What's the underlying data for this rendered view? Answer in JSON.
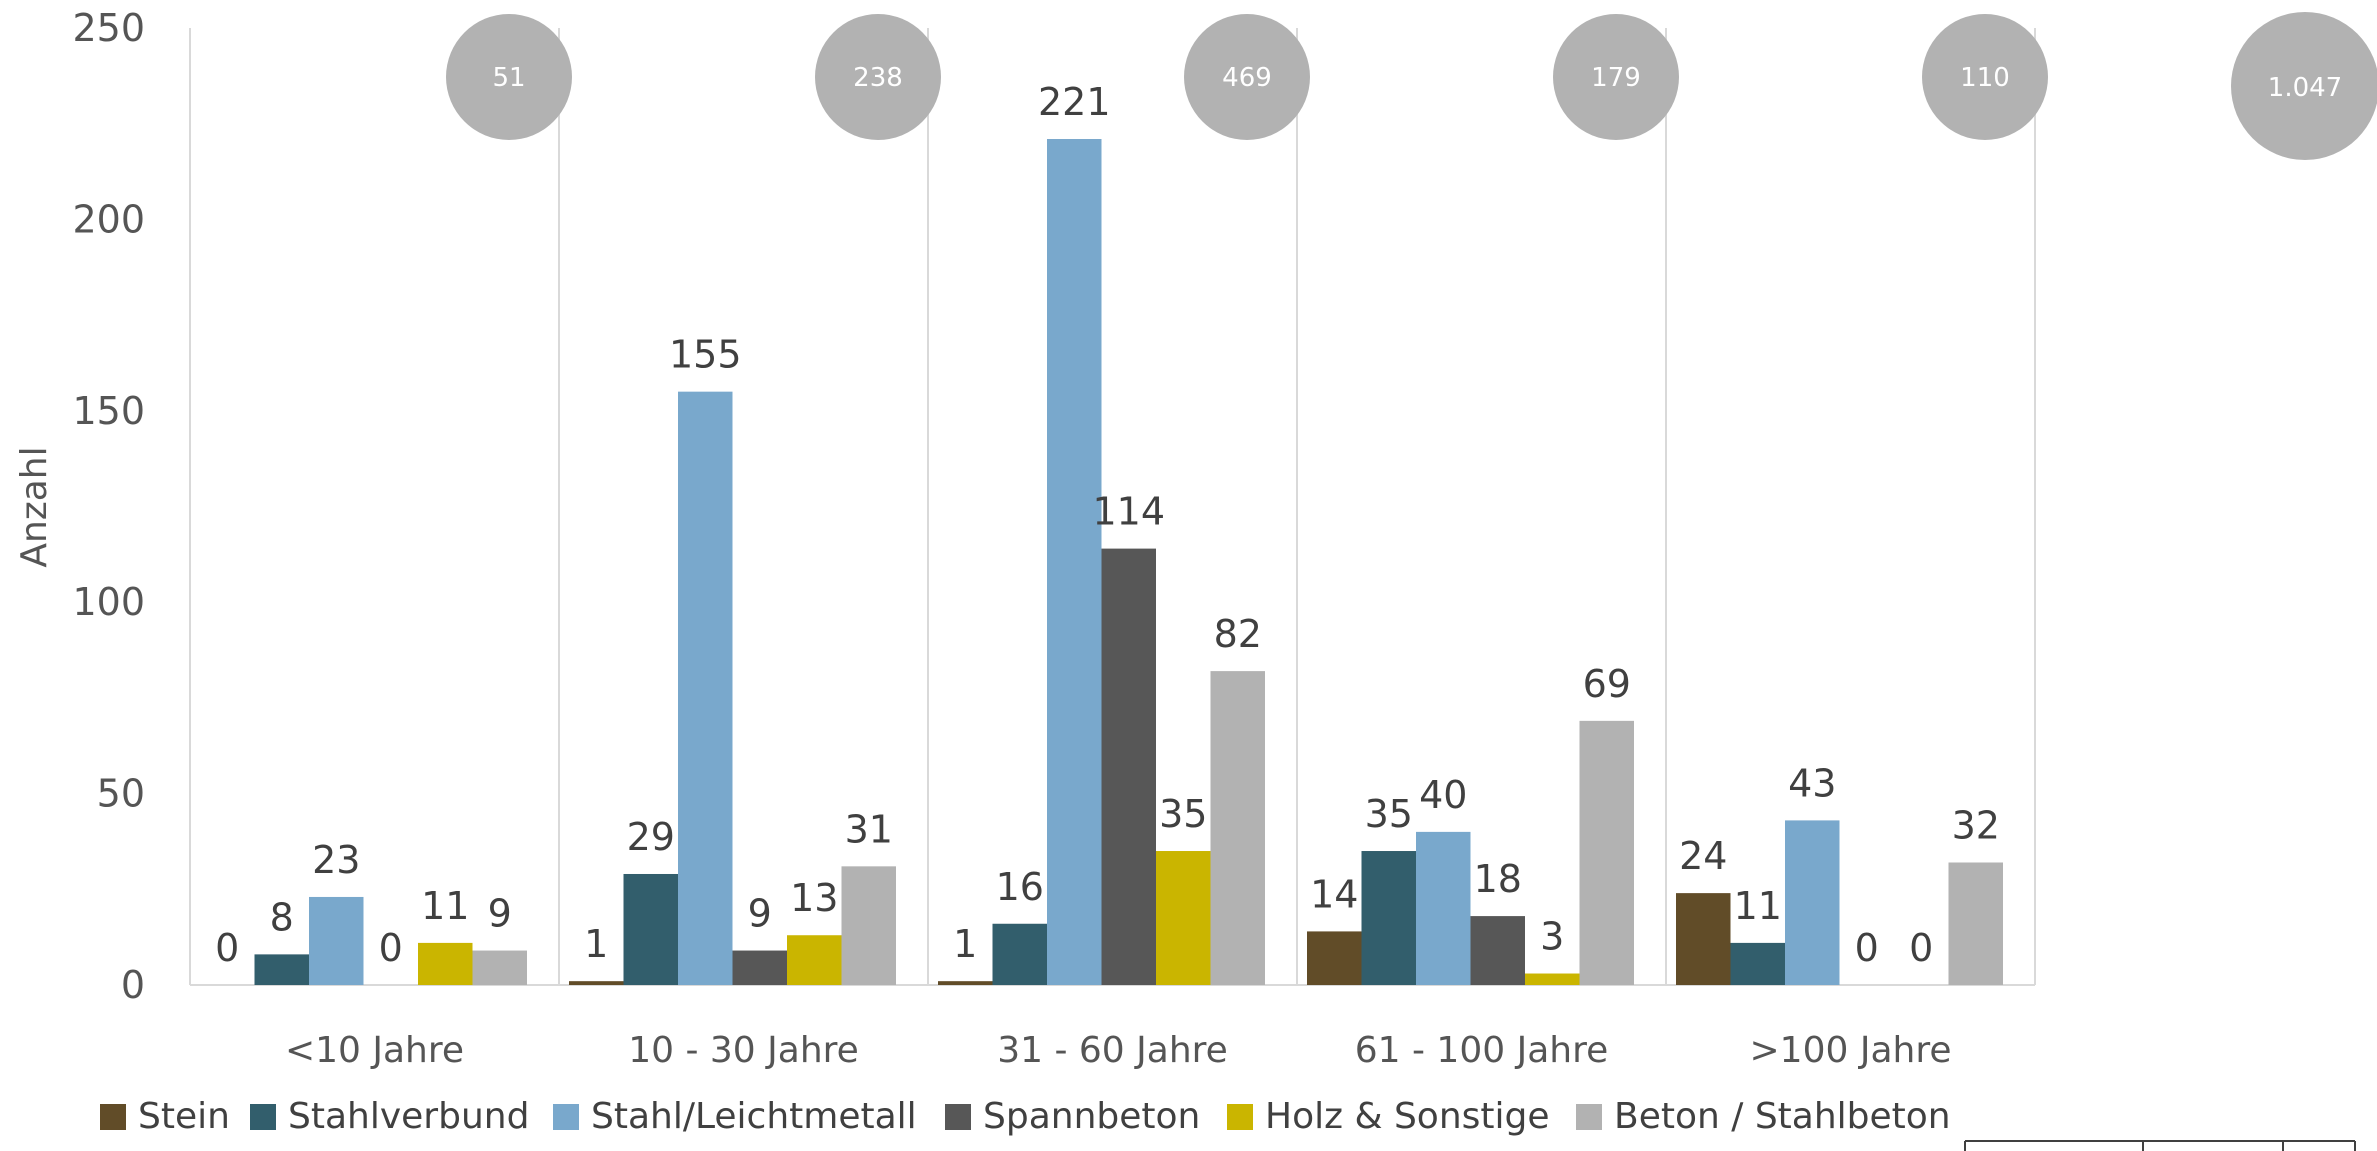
{
  "chart_data": {
    "type": "bar",
    "title": "",
    "xlabel": "",
    "ylabel": "Anzahl",
    "ylim": [
      0,
      250
    ],
    "yticks": [
      "0",
      "50",
      "100",
      "150",
      "200",
      "250"
    ],
    "grid": false,
    "legend_position": "bottom",
    "categories": [
      "<10 Jahre",
      "10 - 30 Jahre",
      "31 - 60 Jahre",
      "61 - 100 Jahre",
      ">100 Jahre"
    ],
    "series": [
      {
        "name": "Stein",
        "color": "#614C28",
        "values": [
          0,
          1,
          1,
          14,
          24
        ]
      },
      {
        "name": "Stahlverbund",
        "color": "#325E6C",
        "values": [
          8,
          29,
          16,
          35,
          11
        ]
      },
      {
        "name": "Stahl/Leichtmetall",
        "color": "#79A8CC",
        "values": [
          23,
          155,
          221,
          40,
          43
        ]
      },
      {
        "name": "Spannbeton",
        "color": "#575757",
        "values": [
          0,
          9,
          114,
          18,
          0
        ]
      },
      {
        "name": "Holz & Sonstige",
        "color": "#CAB500",
        "values": [
          11,
          13,
          35,
          3,
          0
        ]
      },
      {
        "name": "Beton / Stahlbeton",
        "color": "#B2B2B2",
        "values": [
          9,
          31,
          82,
          69,
          32
        ]
      }
    ],
    "data_labels": [
      [
        "0",
        "1",
        "1",
        "14",
        "24"
      ],
      [
        "8",
        "29",
        "16",
        "35",
        "11"
      ],
      [
        "23",
        "155",
        "221",
        "40",
        "43"
      ],
      [
        "0",
        "9",
        "114",
        "18",
        "0"
      ],
      [
        "11",
        "13",
        "35",
        "3",
        "0"
      ],
      [
        "9",
        "31",
        "82",
        "69",
        "32"
      ]
    ],
    "category_totals": [
      "51",
      "238",
      "469",
      "179",
      "110"
    ],
    "grand_total": "1.047",
    "total_marker_color": "#B2B2B2"
  }
}
